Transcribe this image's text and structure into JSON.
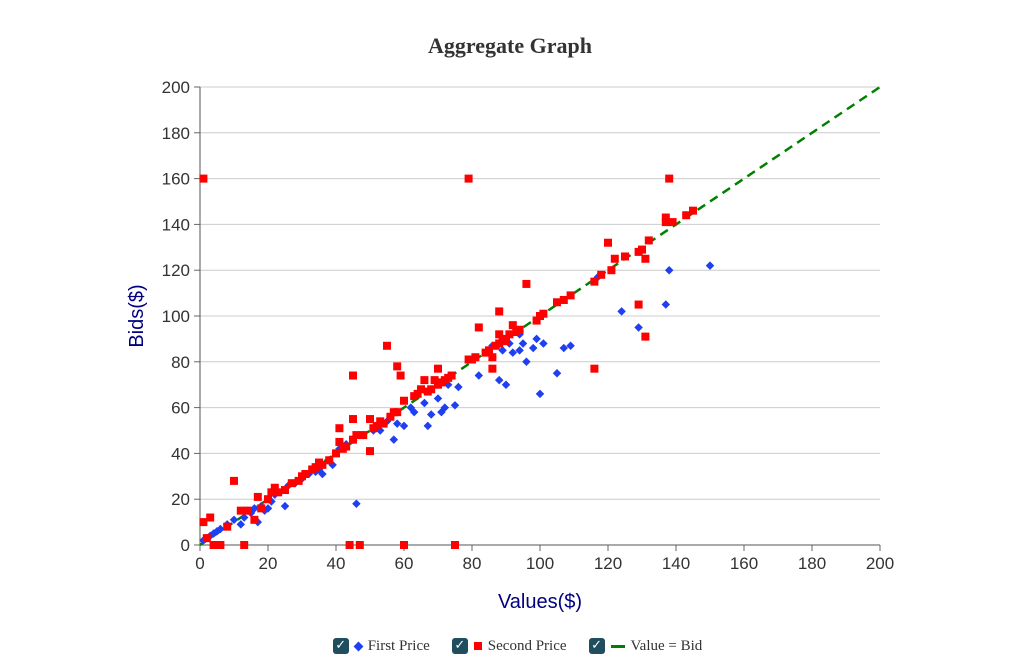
{
  "chart_data": {
    "type": "scatter",
    "title": "Aggregate Graph",
    "xlabel": "Values($)",
    "ylabel": "Bids($)",
    "xlim": [
      0,
      200
    ],
    "ylim": [
      0,
      200
    ],
    "xticks": [
      "0",
      "20",
      "40",
      "60",
      "80",
      "100",
      "120",
      "140",
      "160",
      "180",
      "200"
    ],
    "yticks": [
      "0",
      "20",
      "40",
      "60",
      "80",
      "100",
      "120",
      "140",
      "160",
      "180",
      "200"
    ],
    "grid": "horizontal",
    "legend_position": "bottom",
    "series": [
      {
        "name": "First Price",
        "marker": "diamond",
        "color": "#1f3ff0",
        "points": [
          [
            1,
            2
          ],
          [
            2,
            3
          ],
          [
            3,
            4
          ],
          [
            4,
            5
          ],
          [
            5,
            6
          ],
          [
            6,
            7
          ],
          [
            8,
            9
          ],
          [
            10,
            11
          ],
          [
            12,
            9
          ],
          [
            13,
            12
          ],
          [
            14,
            15
          ],
          [
            15,
            14
          ],
          [
            16,
            16
          ],
          [
            17,
            10
          ],
          [
            18,
            17
          ],
          [
            19,
            15
          ],
          [
            20,
            16
          ],
          [
            21,
            19
          ],
          [
            22,
            22
          ],
          [
            25,
            17
          ],
          [
            26,
            26
          ],
          [
            28,
            27
          ],
          [
            30,
            29
          ],
          [
            32,
            31
          ],
          [
            34,
            32
          ],
          [
            35,
            33
          ],
          [
            36,
            31
          ],
          [
            38,
            37
          ],
          [
            39,
            35
          ],
          [
            41,
            42
          ],
          [
            43,
            44
          ],
          [
            46,
            18
          ],
          [
            48,
            48
          ],
          [
            50,
            41
          ],
          [
            51,
            50
          ],
          [
            52,
            52
          ],
          [
            53,
            50
          ],
          [
            55,
            54
          ],
          [
            56,
            56
          ],
          [
            57,
            46
          ],
          [
            58,
            53
          ],
          [
            60,
            52
          ],
          [
            62,
            60
          ],
          [
            63,
            58
          ],
          [
            66,
            62
          ],
          [
            67,
            52
          ],
          [
            68,
            57
          ],
          [
            70,
            64
          ],
          [
            71,
            58
          ],
          [
            72,
            60
          ],
          [
            73,
            70
          ],
          [
            75,
            61
          ],
          [
            76,
            69
          ],
          [
            82,
            74
          ],
          [
            85,
            84
          ],
          [
            86,
            87
          ],
          [
            88,
            72
          ],
          [
            89,
            85
          ],
          [
            90,
            70
          ],
          [
            91,
            88
          ],
          [
            92,
            84
          ],
          [
            94,
            92
          ],
          [
            94,
            85
          ],
          [
            95,
            88
          ],
          [
            96,
            80
          ],
          [
            98,
            86
          ],
          [
            99,
            90
          ],
          [
            100,
            66
          ],
          [
            101,
            88
          ],
          [
            105,
            75
          ],
          [
            107,
            86
          ],
          [
            109,
            87
          ],
          [
            117,
            117
          ],
          [
            124,
            102
          ],
          [
            129,
            95
          ],
          [
            131,
            91
          ],
          [
            137,
            105
          ],
          [
            138,
            120
          ],
          [
            150,
            122
          ]
        ]
      },
      {
        "name": "Second Price",
        "marker": "square",
        "color": "#ff0000",
        "points": [
          [
            1,
            160
          ],
          [
            1,
            10
          ],
          [
            2,
            3
          ],
          [
            3,
            12
          ],
          [
            4,
            0
          ],
          [
            6,
            0
          ],
          [
            8,
            8
          ],
          [
            10,
            28
          ],
          [
            12,
            15
          ],
          [
            13,
            0
          ],
          [
            14,
            15
          ],
          [
            16,
            11
          ],
          [
            17,
            21
          ],
          [
            18,
            16
          ],
          [
            20,
            20
          ],
          [
            21,
            23
          ],
          [
            22,
            25
          ],
          [
            23,
            23
          ],
          [
            25,
            24
          ],
          [
            27,
            27
          ],
          [
            29,
            28
          ],
          [
            30,
            30
          ],
          [
            31,
            31
          ],
          [
            33,
            33
          ],
          [
            34,
            34
          ],
          [
            35,
            36
          ],
          [
            36,
            35
          ],
          [
            38,
            37
          ],
          [
            40,
            40
          ],
          [
            41,
            51
          ],
          [
            41,
            45
          ],
          [
            42,
            42
          ],
          [
            43,
            43
          ],
          [
            44,
            0
          ],
          [
            45,
            46
          ],
          [
            45,
            55
          ],
          [
            45,
            74
          ],
          [
            46,
            48
          ],
          [
            47,
            0
          ],
          [
            48,
            48
          ],
          [
            50,
            41
          ],
          [
            50,
            55
          ],
          [
            51,
            51
          ],
          [
            52,
            52
          ],
          [
            53,
            54
          ],
          [
            54,
            53
          ],
          [
            55,
            87
          ],
          [
            56,
            56
          ],
          [
            57,
            58
          ],
          [
            58,
            78
          ],
          [
            58,
            58
          ],
          [
            59,
            74
          ],
          [
            60,
            63
          ],
          [
            60,
            0
          ],
          [
            63,
            65
          ],
          [
            64,
            66
          ],
          [
            65,
            68
          ],
          [
            66,
            72
          ],
          [
            67,
            67
          ],
          [
            68,
            68
          ],
          [
            69,
            72
          ],
          [
            70,
            70
          ],
          [
            70,
            77
          ],
          [
            71,
            71
          ],
          [
            72,
            72
          ],
          [
            73,
            73
          ],
          [
            74,
            74
          ],
          [
            75,
            0
          ],
          [
            79,
            81
          ],
          [
            80,
            81
          ],
          [
            81,
            82
          ],
          [
            82,
            95
          ],
          [
            84,
            84
          ],
          [
            85,
            85
          ],
          [
            86,
            77
          ],
          [
            86,
            82
          ],
          [
            87,
            87
          ],
          [
            88,
            88
          ],
          [
            88,
            92
          ],
          [
            88,
            102
          ],
          [
            89,
            90
          ],
          [
            90,
            89
          ],
          [
            91,
            92
          ],
          [
            92,
            96
          ],
          [
            93,
            93
          ],
          [
            94,
            94
          ],
          [
            96,
            114
          ],
          [
            99,
            98
          ],
          [
            100,
            100
          ],
          [
            101,
            101
          ],
          [
            105,
            106
          ],
          [
            107,
            107
          ],
          [
            109,
            109
          ],
          [
            116,
            77
          ],
          [
            116,
            115
          ],
          [
            118,
            118
          ],
          [
            120,
            132
          ],
          [
            121,
            120
          ],
          [
            122,
            125
          ],
          [
            125,
            126
          ],
          [
            129,
            128
          ],
          [
            130,
            129
          ],
          [
            131,
            125
          ],
          [
            132,
            133
          ],
          [
            129,
            105
          ],
          [
            131,
            91
          ],
          [
            137,
            143
          ],
          [
            137,
            141
          ],
          [
            139,
            141
          ],
          [
            143,
            144
          ],
          [
            145,
            146
          ],
          [
            138,
            160
          ],
          [
            79,
            160
          ]
        ]
      },
      {
        "name": "Value = Bid",
        "marker": "dashed-line",
        "color": "#008000",
        "points": [
          [
            0,
            0
          ],
          [
            200,
            200
          ]
        ]
      }
    ]
  },
  "legend": {
    "items": [
      {
        "label": "First Price",
        "checked": "✓"
      },
      {
        "label": "Second Price",
        "checked": "✓"
      },
      {
        "label": "Value = Bid",
        "checked": "✓"
      }
    ]
  }
}
